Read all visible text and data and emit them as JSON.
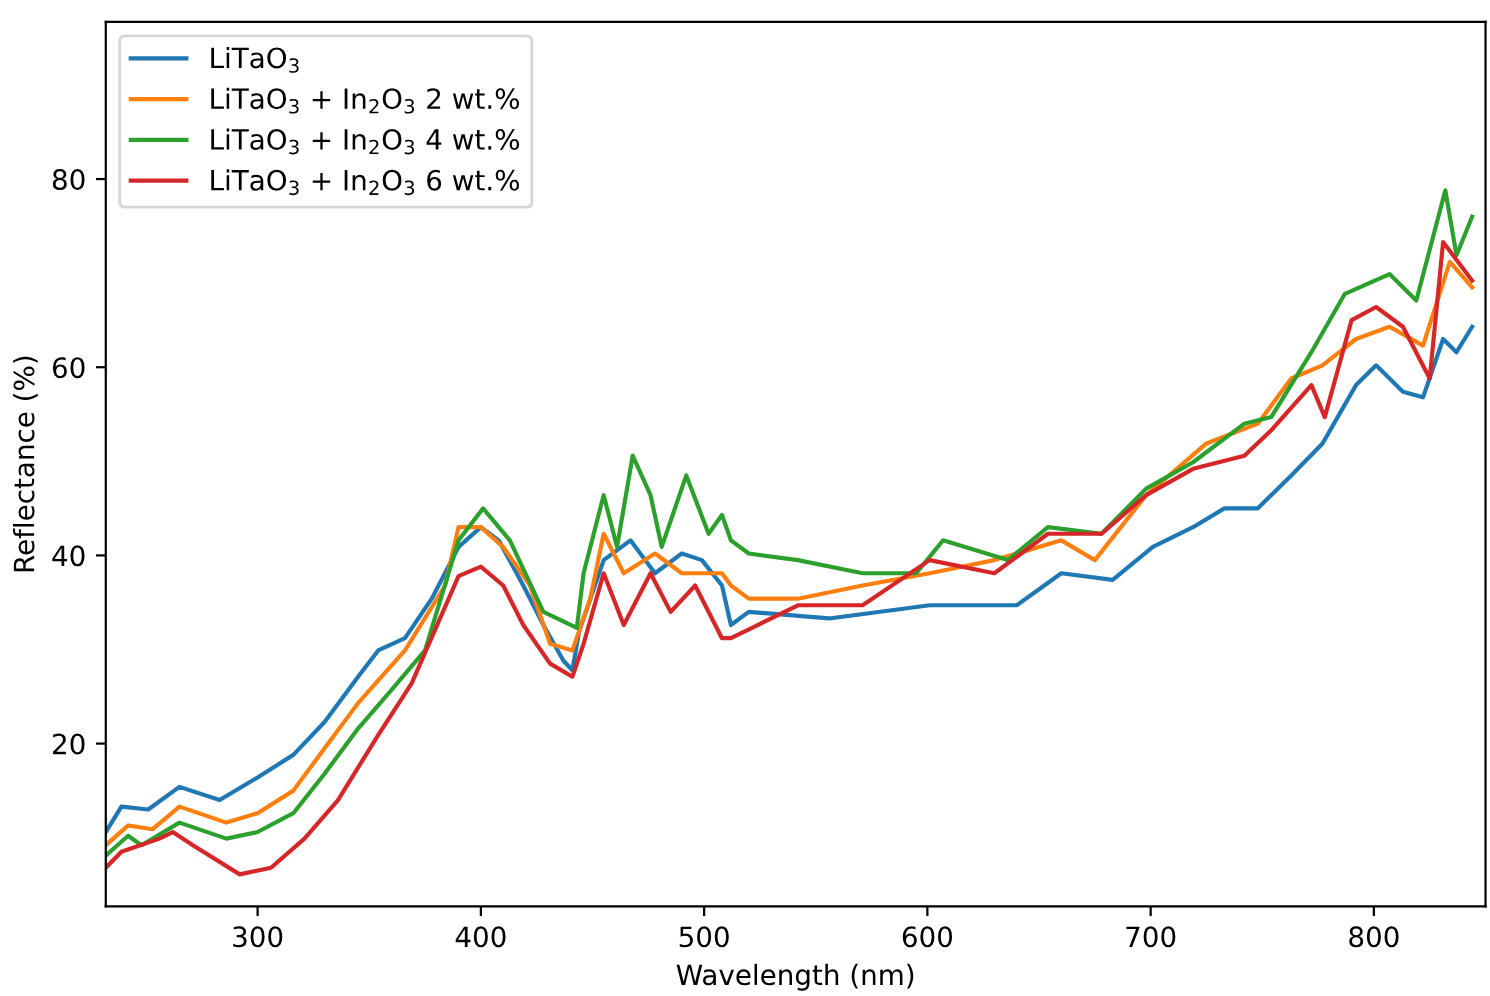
{
  "chart_data": {
    "type": "line",
    "xlabel": "Wavelength (nm)",
    "ylabel": "Reflectance (%)",
    "xlim": [
      232,
      850
    ],
    "ylim": [
      2.7,
      96.7
    ],
    "xticks": [
      300,
      400,
      500,
      600,
      700,
      800
    ],
    "yticks": [
      20,
      40,
      60,
      80
    ],
    "grid": false,
    "legend": "top left",
    "marker": "none",
    "line_style": "solid",
    "series": [
      {
        "name": "LiTaO$_{3}$",
        "color": "#1f77b4",
        "x": [
          232,
          239,
          251,
          265,
          283,
          300,
          316,
          330,
          345,
          354,
          366,
          378,
          390,
          400,
          408,
          419,
          428,
          437,
          441,
          444,
          455,
          467,
          478,
          490,
          499,
          508,
          512,
          520,
          556,
          601,
          640,
          660,
          683,
          701,
          719,
          733,
          748,
          763,
          777,
          792,
          801,
          813,
          822,
          831,
          837,
          844
        ],
        "values": [
          10.6,
          13.3,
          13,
          15.4,
          14,
          16.4,
          18.8,
          22.3,
          27.1,
          29.9,
          31.2,
          35.4,
          40.9,
          43,
          41.6,
          36.8,
          32.6,
          28.8,
          27.8,
          31.9,
          39.5,
          41.6,
          38.1,
          40.2,
          39.5,
          36.8,
          32.6,
          34,
          33.3,
          34.7,
          34.7,
          38.1,
          37.4,
          40.9,
          43,
          45,
          45,
          48.5,
          51.9,
          58.1,
          60.2,
          57.4,
          56.8,
          63,
          61.6,
          64.3
        ]
      },
      {
        "name": "LiTaO$_{3}$ + In$_{2}$O$_{3}$ 2 wt.%",
        "color": "#ff7f0e",
        "x": [
          232,
          242,
          253,
          265,
          286,
          300,
          316,
          330,
          345,
          366,
          384,
          390,
          400,
          410,
          422,
          431,
          441,
          449,
          455,
          464,
          478,
          490,
          508,
          512,
          520,
          542,
          571,
          601,
          630,
          660,
          675,
          698,
          725,
          748,
          763,
          777,
          792,
          807,
          822,
          834,
          844
        ],
        "values": [
          9.2,
          11.3,
          10.9,
          13.3,
          11.6,
          12.6,
          15,
          19.5,
          24.3,
          29.9,
          36.8,
          43,
          43,
          40.9,
          36.8,
          30.6,
          29.9,
          35.4,
          42.3,
          38.1,
          40.2,
          38.1,
          38.1,
          36.8,
          35.4,
          35.4,
          36.8,
          38.1,
          39.5,
          41.6,
          39.5,
          46.4,
          51.9,
          54,
          58.8,
          60.2,
          63,
          64.3,
          62.3,
          71.2,
          68.5
        ]
      },
      {
        "name": "LiTaO$_{3}$ + In$_{2}$O$_{3}$ 4 wt.%",
        "color": "#2ca02c",
        "x": [
          232,
          242,
          248,
          265,
          286,
          300,
          316,
          330,
          345,
          360,
          375,
          390,
          401,
          413,
          428,
          443,
          446,
          455,
          461,
          468,
          476,
          481,
          492,
          502,
          508,
          512,
          520,
          542,
          571,
          595,
          607,
          636,
          654,
          678,
          698,
          719,
          742,
          754,
          772,
          787,
          807,
          819,
          832,
          837,
          844
        ],
        "values": [
          8.1,
          10.2,
          9.2,
          11.6,
          9.9,
          10.6,
          12.6,
          16.8,
          21.6,
          25.7,
          29.9,
          41.6,
          45,
          41.6,
          34,
          32.3,
          38.1,
          46.4,
          40.9,
          50.6,
          46.4,
          40.9,
          48.5,
          42.3,
          44.3,
          41.6,
          40.2,
          39.5,
          38.1,
          38.1,
          41.6,
          39.5,
          43,
          42.3,
          47.1,
          49.9,
          54,
          54.7,
          61.6,
          67.8,
          69.9,
          67.1,
          78.8,
          71.9,
          76
        ]
      },
      {
        "name": "LiTaO$_{3}$ + In$_{2}$O$_{3}$ 6 wt.%",
        "color": "#d62728",
        "x": [
          232,
          239,
          256,
          262,
          271,
          292,
          306,
          321,
          336,
          354,
          369,
          390,
          400,
          410,
          419,
          431,
          441,
          446,
          455,
          464,
          476,
          485,
          496,
          508,
          512,
          524,
          542,
          571,
          601,
          630,
          654,
          678,
          698,
          719,
          742,
          754,
          772,
          778,
          790,
          801,
          813,
          825,
          831,
          844
        ],
        "values": [
          6.8,
          8.5,
          9.9,
          10.6,
          9.2,
          6.1,
          6.8,
          9.9,
          14,
          20.9,
          26.4,
          37.8,
          38.8,
          36.8,
          32.6,
          28.5,
          27.1,
          30.6,
          38.1,
          32.6,
          38.1,
          34,
          36.8,
          31.2,
          31.2,
          32.6,
          34.7,
          34.7,
          39.5,
          38.1,
          42.3,
          42.3,
          46.4,
          49.2,
          50.6,
          53.3,
          58.1,
          54.7,
          65,
          66.4,
          64.3,
          58.8,
          73.3,
          69.2
        ]
      }
    ]
  }
}
